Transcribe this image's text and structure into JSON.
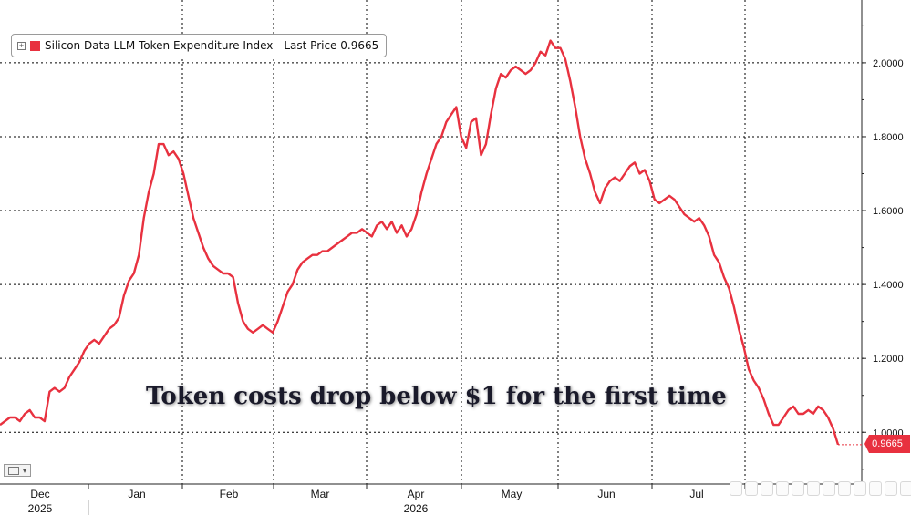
{
  "chart_data": {
    "type": "line",
    "legend": {
      "label": "Silicon Data LLM Token Expenditure Index - Last Price 0.9665",
      "position": "top-left"
    },
    "annotation": "Token costs drop below $1 for the first time",
    "last_value_label": "0.9665",
    "y_axis": {
      "position": "right",
      "ylim": [
        0.86,
        2.17
      ],
      "ticks": [
        1.0,
        1.2,
        1.4,
        1.6,
        1.8,
        2.0
      ],
      "tick_labels": [
        "1.0000",
        "1.2000",
        "1.4000",
        "1.6000",
        "1.8000",
        "2.0000"
      ]
    },
    "x_axis": {
      "month_labels": [
        "Dec",
        "Jan",
        "Feb",
        "Mar",
        "Apr",
        "May",
        "Jun",
        "Jul"
      ],
      "year_labels": [
        {
          "label": "2025",
          "under": "Dec"
        },
        {
          "label": "2026",
          "under": "Apr"
        }
      ]
    },
    "grid": true,
    "color": "#e8313f",
    "series": [
      {
        "name": "Silicon Data LLM Token Expenditure Index",
        "date_range": [
          "2025-12-01",
          "2026-07-31"
        ],
        "values": [
          1.02,
          1.03,
          1.04,
          1.04,
          1.03,
          1.05,
          1.06,
          1.04,
          1.04,
          1.03,
          1.11,
          1.12,
          1.11,
          1.12,
          1.15,
          1.17,
          1.19,
          1.22,
          1.24,
          1.25,
          1.24,
          1.26,
          1.28,
          1.29,
          1.31,
          1.37,
          1.41,
          1.43,
          1.48,
          1.58,
          1.65,
          1.7,
          1.78,
          1.78,
          1.75,
          1.76,
          1.74,
          1.7,
          1.64,
          1.58,
          1.54,
          1.5,
          1.47,
          1.45,
          1.44,
          1.43,
          1.43,
          1.42,
          1.35,
          1.3,
          1.28,
          1.27,
          1.28,
          1.29,
          1.28,
          1.27,
          1.3,
          1.34,
          1.38,
          1.4,
          1.44,
          1.46,
          1.47,
          1.48,
          1.48,
          1.49,
          1.49,
          1.5,
          1.51,
          1.52,
          1.53,
          1.54,
          1.54,
          1.55,
          1.54,
          1.53,
          1.56,
          1.57,
          1.55,
          1.57,
          1.54,
          1.56,
          1.53,
          1.55,
          1.59,
          1.65,
          1.7,
          1.74,
          1.78,
          1.8,
          1.84,
          1.86,
          1.88,
          1.8,
          1.77,
          1.84,
          1.85,
          1.75,
          1.78,
          1.86,
          1.93,
          1.97,
          1.96,
          1.98,
          1.99,
          1.98,
          1.97,
          1.98,
          2.0,
          2.03,
          2.02,
          2.06,
          2.04,
          2.04,
          2.01,
          1.95,
          1.88,
          1.8,
          1.74,
          1.7,
          1.65,
          1.62,
          1.66,
          1.68,
          1.69,
          1.68,
          1.7,
          1.72,
          1.73,
          1.7,
          1.71,
          1.68,
          1.63,
          1.62,
          1.63,
          1.64,
          1.63,
          1.61,
          1.59,
          1.58,
          1.57,
          1.58,
          1.56,
          1.53,
          1.48,
          1.46,
          1.42,
          1.39,
          1.34,
          1.28,
          1.23,
          1.17,
          1.14,
          1.12,
          1.09,
          1.05,
          1.02,
          1.02,
          1.04,
          1.06,
          1.07,
          1.05,
          1.05,
          1.06,
          1.05,
          1.07,
          1.06,
          1.04,
          1.01,
          0.9665
        ]
      }
    ]
  }
}
